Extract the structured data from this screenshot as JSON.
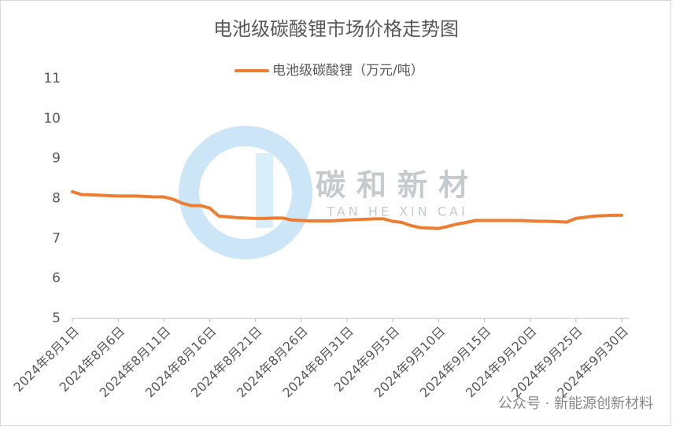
{
  "chart_data": {
    "type": "line",
    "title": "电池级碳酸锂市场价格走势图",
    "categories": [
      "2024年8月1日",
      null,
      null,
      null,
      null,
      "2024年8月6日",
      null,
      null,
      null,
      null,
      "2024年8月11日",
      null,
      null,
      null,
      null,
      "2024年8月16日",
      null,
      null,
      null,
      null,
      "2024年8月21日",
      null,
      null,
      null,
      null,
      "2024年8月26日",
      null,
      null,
      null,
      null,
      "2024年8月31日",
      null,
      null,
      null,
      null,
      "2024年9月5日",
      null,
      null,
      null,
      null,
      "2024年9月10日",
      null,
      null,
      null,
      null,
      "2024年9月15日",
      null,
      null,
      null,
      null,
      "2024年9月20日",
      null,
      null,
      null,
      null,
      "2024年9月25日",
      null,
      null,
      null,
      null,
      "2024年9月30日"
    ],
    "series": [
      {
        "name": "电池级碳酸锂（万元/吨）",
        "color": "#ed7d31",
        "values": [
          8.17,
          8.1,
          8.09,
          8.08,
          8.07,
          8.06,
          8.06,
          8.06,
          8.05,
          8.04,
          8.04,
          7.98,
          7.88,
          7.82,
          7.82,
          7.76,
          7.56,
          7.54,
          7.52,
          7.51,
          7.5,
          7.5,
          7.51,
          7.51,
          7.46,
          7.45,
          7.44,
          7.44,
          7.44,
          7.45,
          7.46,
          7.47,
          7.48,
          7.49,
          7.49,
          7.43,
          7.4,
          7.32,
          7.27,
          7.26,
          7.25,
          7.3,
          7.36,
          7.4,
          7.45,
          7.45,
          7.45,
          7.45,
          7.45,
          7.45,
          7.44,
          7.43,
          7.43,
          7.42,
          7.41,
          7.5,
          7.53,
          7.56,
          7.57,
          7.58,
          7.58
        ]
      }
    ],
    "ylim": [
      5,
      11
    ],
    "yticks": [
      5,
      6,
      7,
      8,
      9,
      10,
      11
    ],
    "grid": false,
    "legend": "top",
    "watermark": {
      "text": "碳和新材",
      "pinyin": "TAN HE XIN CAI"
    },
    "credit": "公众号 · 新能源创新材料"
  }
}
